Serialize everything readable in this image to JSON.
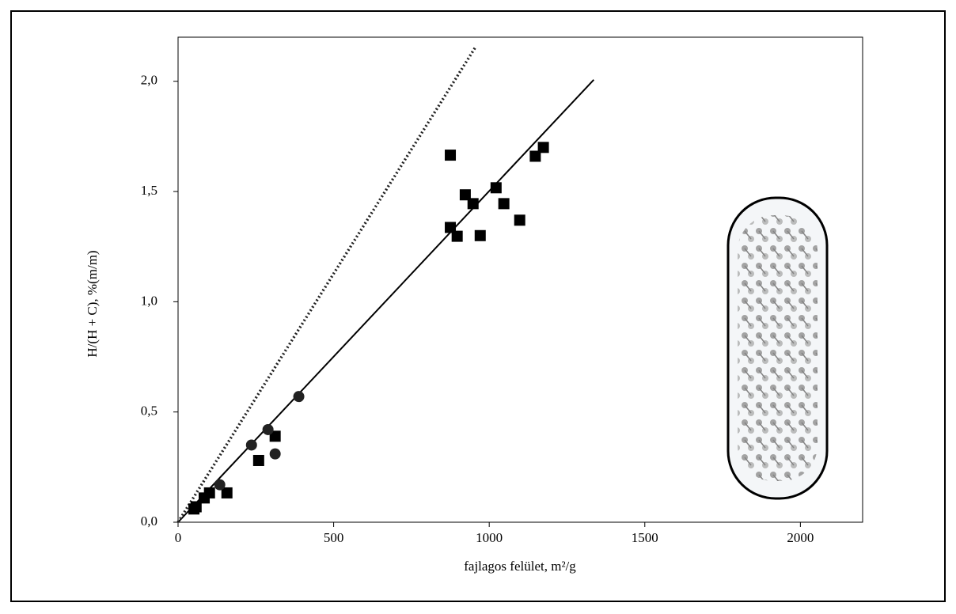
{
  "chart_data": {
    "type": "scatter",
    "x_label": "fajlagos felület, m²/g",
    "y_label": "H/(H + C), %(m/m)",
    "xlim": [
      0,
      2200
    ],
    "ylim": [
      0,
      2.2
    ],
    "xticks": [
      0,
      500,
      1000,
      1500,
      2000
    ],
    "yticks": [
      {
        "value": 0,
        "label": "0,0"
      },
      {
        "value": 0.5,
        "label": "0,5"
      },
      {
        "value": 1,
        "label": "1,0"
      },
      {
        "value": 1.5,
        "label": "1,5"
      },
      {
        "value": 2,
        "label": "2,0"
      }
    ],
    "series": [
      {
        "marker": "square",
        "color": "#000000",
        "x": [
          875,
          875,
          897,
          923,
          948,
          971,
          1022,
          1047,
          1098,
          1148,
          1174,
          312,
          259,
          157,
          51,
          58,
          84,
          101
        ],
        "values": [
          1.665,
          1.337,
          1.297,
          1.485,
          1.445,
          1.3,
          1.517,
          1.445,
          1.37,
          1.66,
          1.7,
          0.39,
          0.28,
          0.133,
          0.06,
          0.07,
          0.11,
          0.133
        ]
      },
      {
        "marker": "circle",
        "color": "#222222",
        "x": [
          388,
          289,
          236,
          312,
          134
        ],
        "values": [
          0.57,
          0.42,
          0.35,
          0.31,
          0.17
        ]
      }
    ],
    "lines": [
      {
        "style": "solid",
        "color": "#000000",
        "x": [
          0,
          1336
        ],
        "values": [
          0,
          2.007
        ]
      },
      {
        "style": "dotted",
        "color": "#222222",
        "x": [
          0,
          958
        ],
        "values": [
          0,
          2.16
        ]
      }
    ]
  }
}
